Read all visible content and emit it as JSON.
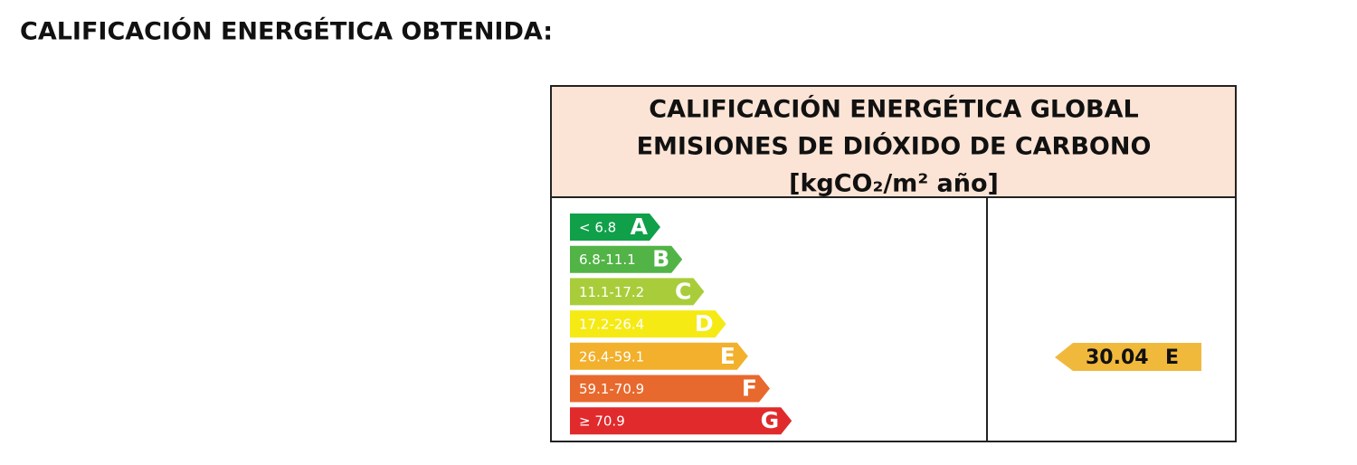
{
  "header": {
    "title": "CALIFICACIÓN ENERGÉTICA OBTENIDA:"
  },
  "label": {
    "heading": [
      "CALIFICACIÓN ENERGÉTICA GLOBAL",
      "EMISIONES DE DIÓXIDO DE CARBONO",
      "[kgCO₂/m² año]"
    ],
    "header_color": "#fbe4d5",
    "ratings": [
      {
        "range": "< 6.8",
        "letter": "A",
        "color": "#10a04a"
      },
      {
        "range": "6.8-11.1",
        "letter": "B",
        "color": "#52b447"
      },
      {
        "range": "11.1-17.2",
        "letter": "C",
        "color": "#a9cd3a"
      },
      {
        "range": "17.2-26.4",
        "letter": "D",
        "color": "#f5ea14"
      },
      {
        "range": "26.4-59.1",
        "letter": "E",
        "color": "#f2b02c"
      },
      {
        "range": "59.1-70.9",
        "letter": "F",
        "color": "#e8692d"
      },
      {
        "range": "≥ 70.9",
        "letter": "G",
        "color": "#e02a2c"
      }
    ],
    "result": {
      "value": "30.04",
      "letter": "E",
      "color": "#f1b93c"
    }
  }
}
